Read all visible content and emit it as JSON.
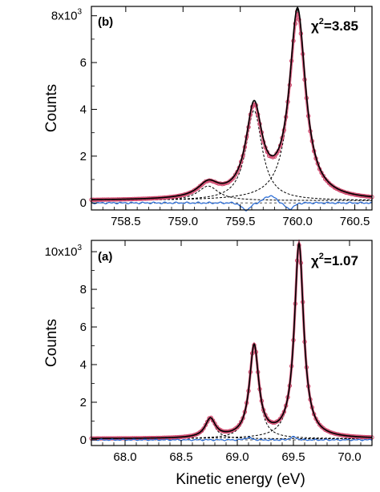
{
  "chart_data": [
    {
      "type": "scatter",
      "panel_label": "(b)",
      "chi_symbol": "χ",
      "chi_exp": "2",
      "chi_value": "=3.85",
      "ylabel": "Counts",
      "xlabel": "",
      "xlim": [
        758.2,
        760.65
      ],
      "ylim": [
        -300,
        8400
      ],
      "x_ticks": [
        758.5,
        759.0,
        759.5,
        760.0,
        760.5
      ],
      "x_tick_labels": [
        "758.5",
        "759.0",
        "759.5",
        "760.0",
        "760.5"
      ],
      "y_ticks": [
        0,
        2000,
        4000,
        6000,
        8000
      ],
      "y_tick_labels": [
        "0",
        "2",
        "4",
        "6",
        "8x10"
      ],
      "y_tick_exp": "3",
      "background": 100,
      "peaks": [
        {
          "center": 759.22,
          "amplitude": 620,
          "hwhm": 0.11
        },
        {
          "center": 759.62,
          "amplitude": 3850,
          "hwhm": 0.085
        },
        {
          "center": 760.0,
          "amplitude": 8050,
          "hwhm": 0.085
        }
      ],
      "data_scale": 0.97,
      "residual_features": [
        {
          "center": 759.55,
          "amplitude": -300,
          "width": 0.04
        },
        {
          "center": 759.76,
          "amplitude": 300,
          "width": 0.05
        },
        {
          "center": 759.93,
          "amplitude": -250,
          "width": 0.04
        }
      ],
      "colors": {
        "data": "#d0496e",
        "fit": "#000000",
        "residual": "#2f6fd6",
        "component": "#000000",
        "baseline": "#555555"
      }
    },
    {
      "type": "scatter",
      "panel_label": "(a)",
      "chi_symbol": "χ",
      "chi_exp": "2",
      "chi_value": "=1.07",
      "ylabel": "Counts",
      "xlabel": "Kinetic energy (eV)",
      "xlim": [
        67.7,
        70.2
      ],
      "ylim": [
        -300,
        10600
      ],
      "x_ticks": [
        68.0,
        68.5,
        69.0,
        69.5,
        70.0
      ],
      "x_tick_labels": [
        "68.0",
        "68.5",
        "69.0",
        "69.5",
        "70.0"
      ],
      "y_ticks": [
        0,
        2000,
        4000,
        6000,
        8000,
        10000
      ],
      "y_tick_labels": [
        "0",
        "2",
        "4",
        "6",
        "8",
        "10x10"
      ],
      "y_tick_exp": "3",
      "background": 60,
      "peaks": [
        {
          "center": 68.76,
          "amplitude": 1000,
          "hwhm": 0.055
        },
        {
          "center": 69.15,
          "amplitude": 4850,
          "hwhm": 0.05
        },
        {
          "center": 69.55,
          "amplitude": 10300,
          "hwhm": 0.05
        }
      ],
      "data_scale": 1.0,
      "residual_features": [
        {
          "center": 69.1,
          "amplitude": 120,
          "width": 0.03
        },
        {
          "center": 69.5,
          "amplitude": 150,
          "width": 0.03
        }
      ],
      "colors": {
        "data": "#d0496e",
        "fit": "#000000",
        "residual": "#2f6fd6",
        "component": "#000000",
        "baseline": "#555555"
      }
    }
  ]
}
